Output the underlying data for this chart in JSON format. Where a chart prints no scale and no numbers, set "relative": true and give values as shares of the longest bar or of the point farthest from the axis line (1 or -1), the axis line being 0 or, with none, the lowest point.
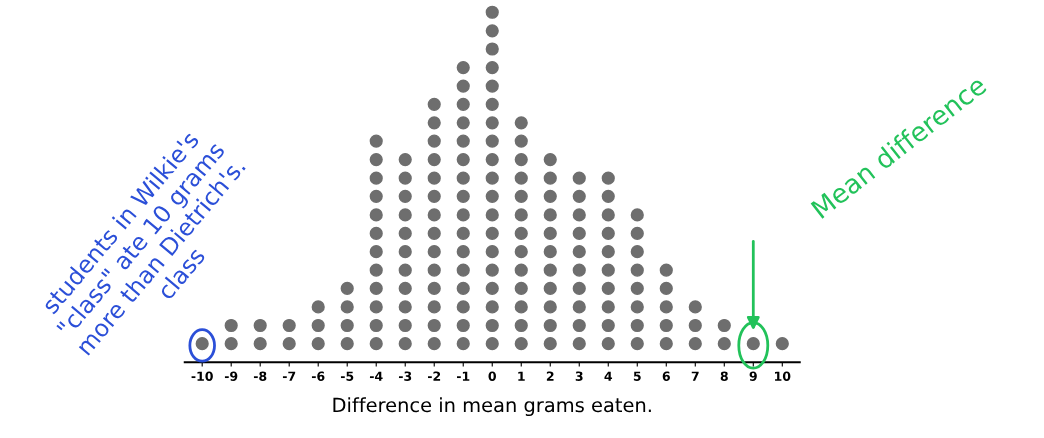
{
  "chart_data": {
    "type": "scatter",
    "xlabel": "Difference in mean grams eaten.",
    "relative": true,
    "x": [
      -10,
      -9,
      -9,
      -8,
      -8,
      -7,
      -7,
      -6,
      -6,
      -6,
      -5,
      -5,
      -5,
      -5,
      -4,
      -4,
      -4,
      -4,
      -4,
      -4,
      -4,
      -4,
      -4,
      -4,
      -4,
      -4,
      -3,
      -3,
      -3,
      -3,
      -3,
      -3,
      -3,
      -3,
      -3,
      -3,
      -3,
      -2,
      -2,
      -2,
      -2,
      -2,
      -2,
      -2,
      -2,
      -2,
      -2,
      -2,
      -2,
      -2,
      -2,
      -1,
      -1,
      -1,
      -1,
      -1,
      -1,
      -1,
      -1,
      -1,
      -1,
      -1,
      -1,
      -1,
      -1,
      -1,
      -1,
      0,
      0,
      0,
      0,
      0,
      0,
      0,
      0,
      0,
      0,
      0,
      0,
      0,
      0,
      0,
      0,
      0,
      0,
      0,
      1,
      1,
      1,
      1,
      1,
      1,
      1,
      1,
      1,
      1,
      1,
      1,
      1,
      2,
      2,
      2,
      2,
      2,
      2,
      2,
      2,
      2,
      2,
      2,
      3,
      3,
      3,
      3,
      3,
      3,
      3,
      3,
      3,
      3,
      4,
      4,
      4,
      4,
      4,
      4,
      4,
      4,
      4,
      4,
      5,
      5,
      5,
      5,
      5,
      5,
      5,
      5,
      6,
      6,
      6,
      6,
      6,
      7,
      7,
      7,
      8,
      8,
      9,
      10
    ],
    "values": [
      0.053,
      0.053,
      0.105,
      0.053,
      0.105,
      0.053,
      0.105,
      0.053,
      0.105,
      0.158,
      0.053,
      0.105,
      0.158,
      0.211,
      0.053,
      0.105,
      0.158,
      0.211,
      0.263,
      0.316,
      0.368,
      0.421,
      0.474,
      0.526,
      0.579,
      0.632,
      0.053,
      0.105,
      0.158,
      0.211,
      0.263,
      0.316,
      0.368,
      0.421,
      0.474,
      0.526,
      0.579,
      0.053,
      0.105,
      0.158,
      0.211,
      0.263,
      0.316,
      0.368,
      0.421,
      0.474,
      0.526,
      0.579,
      0.632,
      0.684,
      0.737,
      0.053,
      0.105,
      0.158,
      0.211,
      0.263,
      0.316,
      0.368,
      0.421,
      0.474,
      0.526,
      0.579,
      0.632,
      0.684,
      0.737,
      0.789,
      0.842,
      0.053,
      0.105,
      0.158,
      0.211,
      0.263,
      0.316,
      0.368,
      0.421,
      0.474,
      0.526,
      0.579,
      0.632,
      0.684,
      0.737,
      0.789,
      0.842,
      0.895,
      0.947,
      1,
      0.053,
      0.105,
      0.158,
      0.211,
      0.263,
      0.316,
      0.368,
      0.421,
      0.474,
      0.526,
      0.579,
      0.632,
      0.684,
      0.053,
      0.105,
      0.158,
      0.211,
      0.263,
      0.316,
      0.368,
      0.421,
      0.474,
      0.526,
      0.579,
      0.053,
      0.105,
      0.158,
      0.211,
      0.263,
      0.316,
      0.368,
      0.421,
      0.474,
      0.526,
      0.053,
      0.105,
      0.158,
      0.211,
      0.263,
      0.316,
      0.368,
      0.421,
      0.474,
      0.526,
      0.053,
      0.105,
      0.158,
      0.211,
      0.263,
      0.316,
      0.368,
      0.421,
      0.053,
      0.105,
      0.158,
      0.211,
      0.263,
      0.053,
      0.105,
      0.158,
      0.053,
      0.105,
      0.053,
      0.053
    ],
    "color": "#6e6e6e",
    "marker": "circle",
    "xlim": [
      -10.6,
      10.6
    ],
    "xticks": [
      -10,
      -9,
      -8,
      -7,
      -6,
      -5,
      -4,
      -3,
      -2,
      -1,
      0,
      1,
      2,
      3,
      4,
      5,
      6,
      7,
      8,
      9,
      10
    ],
    "tick_labels": "x",
    "annotations": [
      {
        "text": "students in Wilkie's\n\"class\" ate 10 grams\nmore than Dietrich's.\nclass",
        "x": -10,
        "y": 0.053
      },
      "Mean difference"
    ]
  }
}
